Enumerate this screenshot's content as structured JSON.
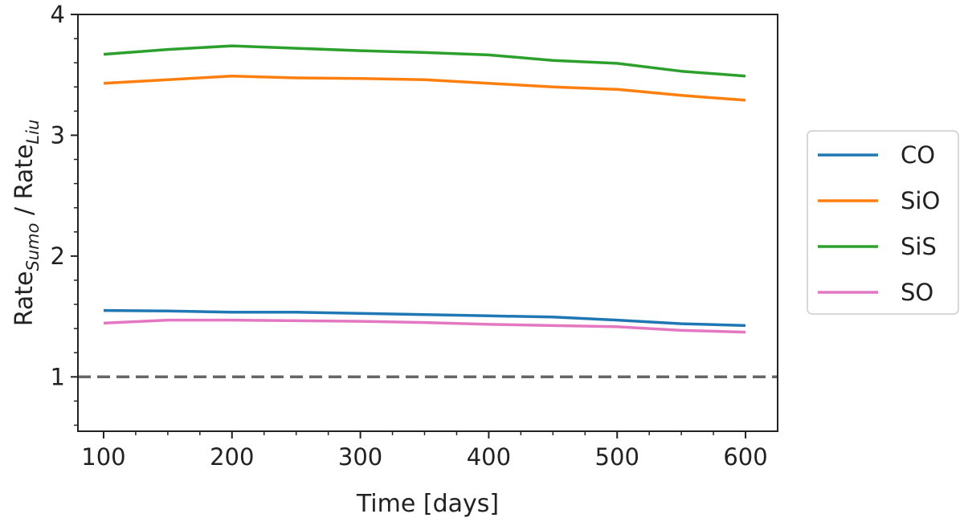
{
  "chart_data": {
    "type": "line",
    "xlabel": "Time [days]",
    "ylabel": {
      "main1": "Rate",
      "sub1": "Sumo",
      "sep": " / ",
      "main2": "Rate",
      "sub2": "Liu"
    },
    "xlim": [
      80,
      625
    ],
    "ylim": [
      0.55,
      4.0
    ],
    "xticks": [
      100,
      200,
      300,
      400,
      500,
      600
    ],
    "yticks": [
      1,
      2,
      3,
      4
    ],
    "x": [
      100,
      150,
      200,
      250,
      300,
      350,
      400,
      450,
      500,
      550,
      600
    ],
    "series": [
      {
        "name": "CO",
        "color": "#1f77b4",
        "values": [
          1.55,
          1.545,
          1.535,
          1.535,
          1.525,
          1.515,
          1.505,
          1.495,
          1.47,
          1.44,
          1.425
        ]
      },
      {
        "name": "SiO",
        "color": "#ff7f0e",
        "values": [
          3.43,
          3.46,
          3.49,
          3.475,
          3.47,
          3.46,
          3.43,
          3.4,
          3.38,
          3.33,
          3.29
        ]
      },
      {
        "name": "SiS",
        "color": "#2ca02c",
        "values": [
          3.67,
          3.71,
          3.74,
          3.72,
          3.7,
          3.685,
          3.665,
          3.62,
          3.595,
          3.53,
          3.49
        ]
      },
      {
        "name": "SO",
        "color": "#e377c2",
        "values": [
          1.445,
          1.47,
          1.47,
          1.465,
          1.46,
          1.45,
          1.435,
          1.425,
          1.415,
          1.385,
          1.37
        ]
      }
    ],
    "reference_line": {
      "y": 1,
      "color": "#666666",
      "style": "dashed"
    },
    "legend": {
      "placement": "outside-right"
    },
    "grid": false
  }
}
